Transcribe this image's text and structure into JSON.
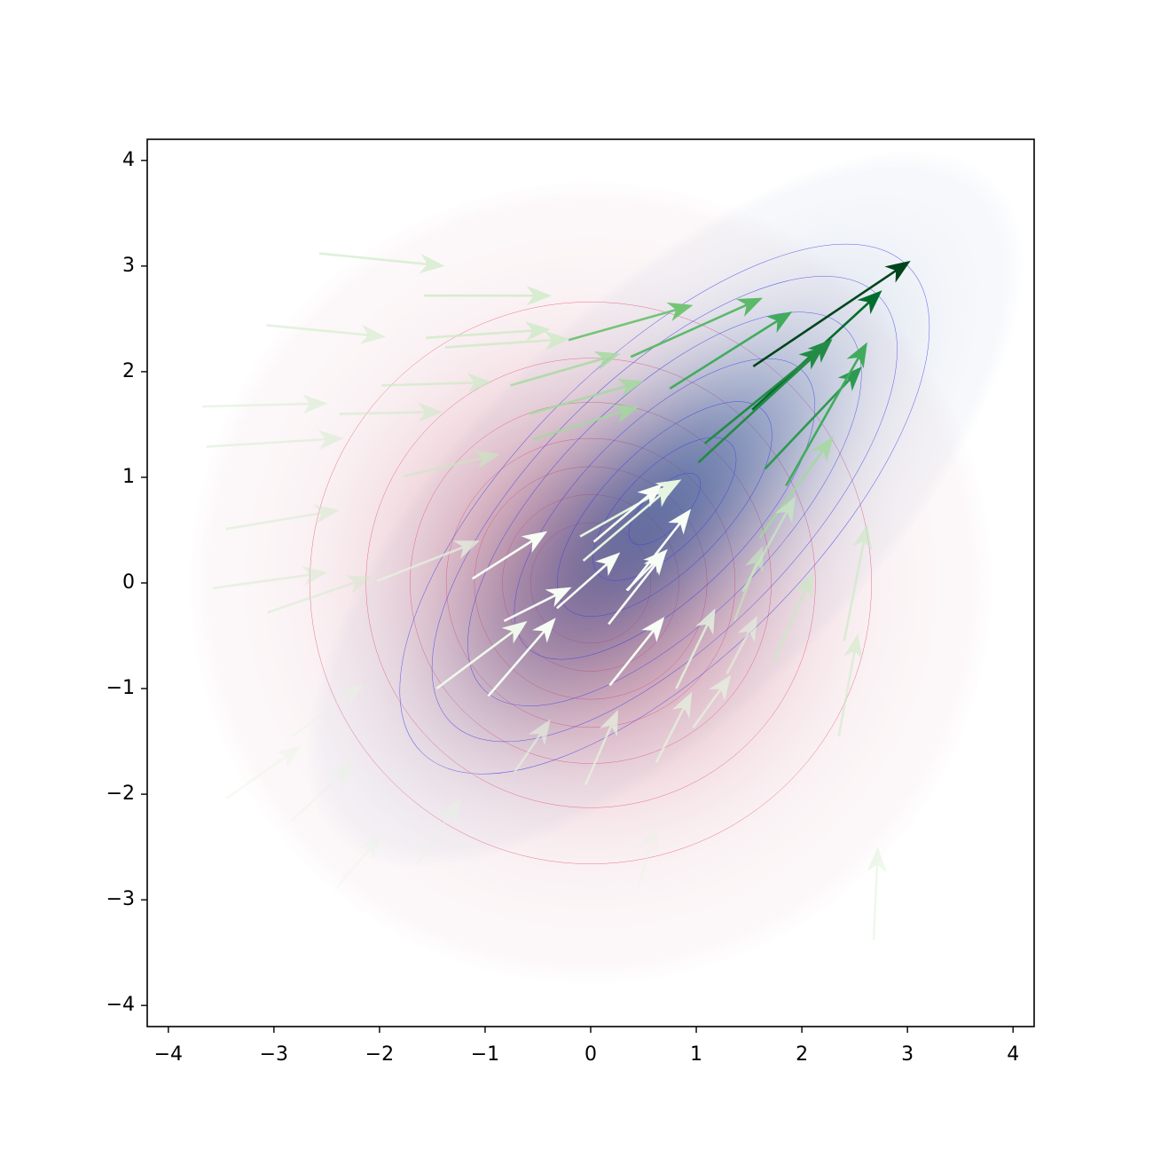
{
  "chart_data": {
    "type": "quiver",
    "xlim": [
      -4.2,
      4.2
    ],
    "ylim": [
      -4.2,
      4.2
    ],
    "xticks": [
      {
        "value": -4,
        "label": "−4"
      },
      {
        "value": -3,
        "label": "−3"
      },
      {
        "value": -2,
        "label": "−2"
      },
      {
        "value": -1,
        "label": "−1"
      },
      0,
      1,
      2,
      3,
      4
    ],
    "yticks": [
      {
        "value": -4,
        "label": "−4"
      },
      {
        "value": -3,
        "label": "−3"
      },
      {
        "value": -2,
        "label": "−2"
      },
      {
        "value": -1,
        "label": "−1"
      },
      0,
      1,
      2,
      3,
      4
    ],
    "fields": [
      {
        "center": [
          0,
          0
        ],
        "radii": [
          3.8,
          3.8
        ],
        "angle": 0,
        "color": "#b8405e",
        "line_color": "#e8507a",
        "peak": 0.55,
        "contours": [
          0.15,
          0.22,
          0.29,
          0.36,
          0.45,
          0.56,
          0.7
        ]
      },
      {
        "center": [
          0.7,
          0.7
        ],
        "radii": [
          4.4,
          1.9
        ],
        "angle": 45,
        "color": "#1f4f96",
        "line_color": "#3a3ae8",
        "peak": 0.6,
        "contours": [
          0.1,
          0.2,
          0.3,
          0.42,
          0.55,
          0.65,
          0.74
        ]
      }
    ],
    "x": [
      1.54,
      1.53,
      1.02,
      1.08,
      1.65,
      1.85,
      0.75,
      0.38,
      -0.21,
      1.6,
      1.44,
      1.73,
      2.4,
      2.35,
      2.68,
      -0.76,
      -0.58,
      -0.55,
      -1.38,
      -1.56,
      -1.58,
      -2.57,
      -3.07,
      -3.68,
      -3.64,
      -1.98,
      -2.38,
      -1.77,
      -3.46,
      -3.58,
      -3.06,
      -2.02,
      -1.12,
      -0.1,
      -0.07,
      0.03,
      0.35,
      0.34,
      0.17,
      -0.32,
      -0.82,
      -1.46,
      -0.97,
      0.18,
      0.81,
      -0.05,
      0.62,
      0.97,
      -3.45,
      -2.83,
      -2.4,
      -1.65,
      -0.72,
      0.45,
      -2.82,
      1.36,
      1.29
    ],
    "y": [
      2.05,
      1.64,
      1.14,
      1.32,
      1.08,
      0.92,
      1.84,
      2.14,
      2.3,
      0.43,
      -0.08,
      -0.74,
      -0.55,
      -1.45,
      -3.38,
      1.87,
      1.6,
      1.36,
      2.23,
      2.32,
      2.72,
      3.12,
      2.44,
      1.67,
      1.29,
      1.87,
      1.6,
      1.01,
      0.51,
      -0.05,
      -0.28,
      0.02,
      0.04,
      0.44,
      0.21,
      0.39,
      -0.07,
      -0.07,
      -0.39,
      -0.24,
      -0.36,
      -1.0,
      -1.07,
      -0.97,
      -1.0,
      -1.91,
      -1.7,
      -1.37,
      -2.04,
      -2.25,
      -2.88,
      -2.67,
      -1.79,
      -2.88,
      -1.45,
      -0.36,
      -0.86
    ],
    "u": [
      1.49,
      1.23,
      1.27,
      1.13,
      0.92,
      0.77,
      1.16,
      1.25,
      1.18,
      0.7,
      0.5,
      0.38,
      0.22,
      0.18,
      0.04,
      1.04,
      1.08,
      1.01,
      1.18,
      1.18,
      1.21,
      1.19,
      1.13,
      1.19,
      1.3,
      1.05,
      0.98,
      0.91,
      1.08,
      1.09,
      0.99,
      0.97,
      0.71,
      0.96,
      0.86,
      0.65,
      0.6,
      0.39,
      0.55,
      0.6,
      0.64,
      0.86,
      0.64,
      0.52,
      0.37,
      0.31,
      0.34,
      0.36,
      0.71,
      0.59,
      0.42,
      0.42,
      0.34,
      0.17,
      0.67,
      0.27,
      0.29
    ],
    "v": [
      1.0,
      1.13,
      1.17,
      0.92,
      0.97,
      1.36,
      0.73,
      0.56,
      0.33,
      0.96,
      0.9,
      0.84,
      1.11,
      0.97,
      0.88,
      0.3,
      0.31,
      0.31,
      0.08,
      0.08,
      0.0,
      -0.12,
      -0.11,
      0.03,
      0.08,
      0.03,
      0.02,
      0.21,
      0.18,
      0.15,
      0.34,
      0.38,
      0.45,
      0.54,
      0.73,
      0.55,
      0.77,
      0.39,
      0.7,
      0.53,
      0.32,
      0.64,
      0.74,
      0.65,
      0.76,
      0.71,
      0.67,
      0.5,
      0.5,
      0.55,
      0.5,
      0.63,
      0.5,
      0.59,
      0.5,
      0.71,
      0.55
    ],
    "colors": [
      "#00441b",
      "#006d2c",
      "#238b45",
      "#238b45",
      "#2e9950",
      "#41ab5d",
      "#41ab5d",
      "#5cb96a",
      "#74c476",
      "rgba(161,217,155,0.8)",
      "rgba(199,233,192,0.7)",
      "rgba(199,233,192,0.7)",
      "rgba(199,233,192,0.6)",
      "rgba(199,233,192,0.5)",
      "rgba(199,233,192,0.3)",
      "rgba(161,217,155,0.8)",
      "rgba(161,217,155,0.8)",
      "rgba(161,217,155,0.8)",
      "rgba(199,233,192,0.7)",
      "rgba(199,233,192,0.7)",
      "rgba(199,233,192,0.7)",
      "rgba(199,233,192,0.6)",
      "rgba(199,233,192,0.5)",
      "rgba(199,233,192,0.4)",
      "rgba(199,233,192,0.4)",
      "rgba(199,233,192,0.6)",
      "rgba(199,233,192,0.5)",
      "rgba(199,233,192,0.6)",
      "rgba(199,233,192,0.4)",
      "rgba(199,233,192,0.4)",
      "rgba(199,233,192,0.4)",
      "rgba(229,245,224,0.7)",
      "#f7fcf5",
      "#e5f5e0",
      "#e5f5e0",
      "#f7fcf5",
      "#f7fcf5",
      "#f7fcf5",
      "#f7fcf5",
      "#f7fcf5",
      "#f7fcf5",
      "#eef8ea",
      "#f7fcf5",
      "#f7fcf5",
      "rgba(229,245,224,0.8)",
      "rgba(229,245,224,0.7)",
      "rgba(229,245,224,0.7)",
      "rgba(229,245,224,0.7)",
      "rgba(229,245,224,0.4)",
      "rgba(229,245,224,0.4)",
      "rgba(229,245,224,0.3)",
      "rgba(229,245,224,0.4)",
      "rgba(229,245,224,0.6)",
      "rgba(229,245,224,0.3)",
      "rgba(229,245,224,0.4)",
      "rgba(199,233,192,0.6)",
      "rgba(229,245,224,0.6)"
    ]
  }
}
